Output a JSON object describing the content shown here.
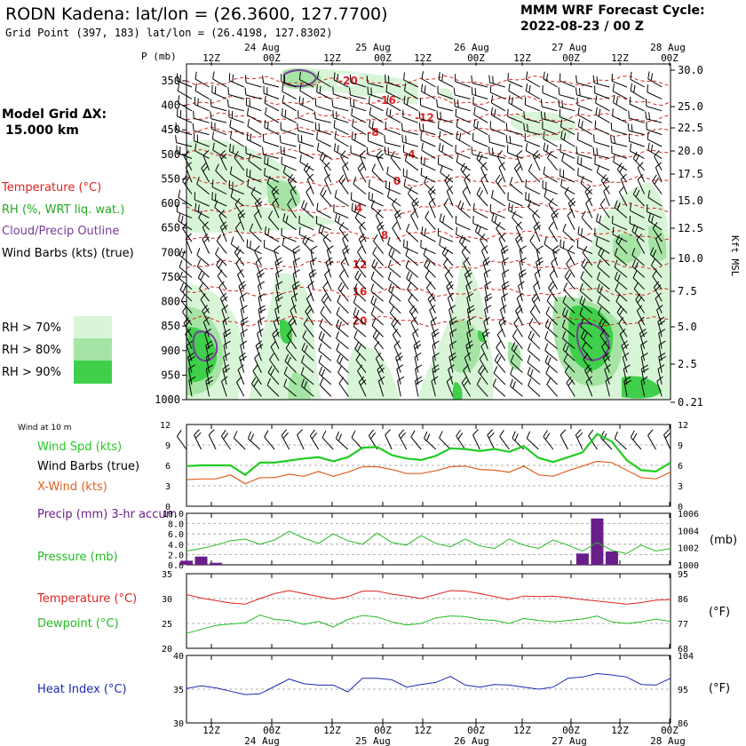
{
  "header": {
    "title": "RODN Kadena:  lat/lon = (26.3600, 127.7700)",
    "subtitle": "Grid Point (397, 183) lat/lon = (26.4198, 127.8302)",
    "cycle_line1": "MMM WRF Forecast Cycle:",
    "cycle_line2": "2022-08-23 / 00  Z"
  },
  "legend": {
    "model_grid_label": "Model Grid ΔX:",
    "model_grid_value": "15.000 km",
    "temperature": "Temperature (°C)",
    "rh": "RH (%, WRT liq. wat.)",
    "cloud": "Cloud/Precip Outline",
    "barbs": "Wind Barbs (kts) (true)",
    "rh70": "RH > 70%",
    "rh80": "RH > 80%",
    "rh90": "RH > 90%"
  },
  "colors": {
    "temperature": "#dd2222",
    "rh_text": "#22aa22",
    "cloud": "#7a3a9a",
    "rh70": "#d8f5d8",
    "rh80": "#a6e4a6",
    "rh90": "#3fcf4a",
    "wind_speed": "#22cc22",
    "cross_wind": "#e06020",
    "precip": "#6a1e8a",
    "pressure": "#22bb22",
    "dewpoint": "#22bb22",
    "heat_index": "#1c28b0"
  },
  "time_axis": {
    "top_days": [
      "24 Aug",
      "25 Aug",
      "26 Aug",
      "27 Aug",
      "28 Aug"
    ],
    "top_hours": [
      "12Z",
      "00Z",
      "12Z",
      "00Z",
      "12Z",
      "00Z",
      "12Z",
      "00Z",
      "12Z",
      "00Z"
    ],
    "bottom_days": [
      "24 Aug",
      "25 Aug",
      "26 Aug",
      "27 Aug",
      "28 Aug"
    ],
    "bottom_hours": [
      "12Z",
      "00Z",
      "12Z",
      "00Z",
      "12Z",
      "00Z",
      "12Z",
      "00Z",
      "12Z",
      "00Z"
    ]
  },
  "chart_data": [
    {
      "type": "heatmap",
      "ylabel": "P (mb)",
      "y2label": "Kft MSL",
      "pressure_levels": [
        "350",
        "400",
        "450",
        "500",
        "550",
        "600",
        "650",
        "700",
        "750",
        "800",
        "850",
        "900",
        "950",
        "1000"
      ],
      "height_ticks": [
        "30.0",
        "25.0",
        "22.5",
        "20.0",
        "17.5",
        "15.0",
        "12.5",
        "10.0",
        "7.5",
        "5.0",
        "2.5",
        "0.21"
      ],
      "temperature_contours": [
        {
          "label": "-20",
          "level": 350
        },
        {
          "label": "-16",
          "level": 390
        },
        {
          "label": "-12",
          "level": 425
        },
        {
          "label": "-8",
          "level": 455
        },
        {
          "label": "-4",
          "level": 500
        },
        {
          "label": "0",
          "level": 555
        },
        {
          "label": "4",
          "level": 610
        },
        {
          "label": "8",
          "level": 665
        },
        {
          "label": "12",
          "level": 725
        },
        {
          "label": "16",
          "level": 780
        },
        {
          "label": "20",
          "level": 840
        }
      ]
    },
    {
      "type": "line",
      "title": "Wind at 10 m",
      "series": [
        {
          "name": "Wind Spd (kts)",
          "values": [
            5.9,
            6.0,
            6.0,
            6.0,
            4.6,
            6.4,
            6.4,
            6.7,
            7.0,
            7.2,
            6.6,
            7.2,
            8.6,
            8.7,
            7.5,
            7.0,
            6.8,
            7.4,
            8.5,
            8.4,
            8.1,
            8.4,
            8.0,
            8.8,
            7.1,
            6.5,
            7.2,
            7.9,
            10.6,
            9.5,
            6.8,
            5.3,
            5.1,
            6.4
          ]
        },
        {
          "name": "X-Wind (kts)",
          "values": [
            3.9,
            4.0,
            4.0,
            4.6,
            3.3,
            4.2,
            4.2,
            4.7,
            4.4,
            5.1,
            4.4,
            5.0,
            5.8,
            5.8,
            5.4,
            4.8,
            4.8,
            5.2,
            5.8,
            5.9,
            5.4,
            5.3,
            5.0,
            5.9,
            4.6,
            4.4,
            5.2,
            5.9,
            6.6,
            6.4,
            5.3,
            4.2,
            4.0,
            5.0
          ]
        }
      ],
      "legend_extra": "Wind Barbs (true)",
      "y_ticks": [
        "0",
        "3",
        "6",
        "9",
        "12"
      ],
      "ylim": [
        0,
        12
      ]
    },
    {
      "type": "bar",
      "series": [
        {
          "name": "Precip (mm) 3-hr accum",
          "values": [
            0.8,
            1.6,
            0.4,
            0,
            0,
            0,
            0,
            0,
            0,
            0,
            0,
            0,
            0,
            0,
            0,
            0,
            0,
            0,
            0,
            0,
            0,
            0,
            0,
            0,
            0,
            0,
            0,
            2.2,
            9.0,
            2.6,
            0,
            0,
            0,
            0
          ]
        },
        {
          "name": "Pressure (mb)",
          "values": [
            1001.6,
            1001.9,
            1002.3,
            1002.8,
            1003.0,
            1002.4,
            1002.9,
            1003.9,
            1003.1,
            1002.5,
            1003.6,
            1002.8,
            1002.4,
            1003.7,
            1002.6,
            1002.3,
            1003.4,
            1002.5,
            1002.1,
            1003.0,
            1002.2,
            1001.9,
            1003.0,
            1002.3,
            1001.9,
            1002.9,
            1002.3,
            1001.6,
            1002.6,
            1001.7,
            1001.3,
            1002.3,
            1001.6,
            1001.9
          ]
        }
      ],
      "y_ticks_left": [
        "0.0",
        "2.0",
        "4.0",
        "6.0",
        "8.0",
        "10.0"
      ],
      "y_ticks_right": [
        "1000",
        "1002",
        "1004",
        "1006"
      ],
      "y2label": "(mb)"
    },
    {
      "type": "line",
      "series": [
        {
          "name": "Temperature (°C)",
          "values": [
            30.8,
            30.1,
            29.6,
            29.1,
            28.9,
            30.0,
            31.0,
            31.6,
            31.0,
            30.4,
            29.9,
            30.4,
            31.5,
            31.5,
            30.9,
            30.5,
            30.0,
            30.8,
            31.6,
            31.5,
            31.0,
            30.4,
            29.8,
            30.5,
            30.4,
            30.5,
            30.2,
            29.8,
            29.5,
            29.2,
            28.9,
            29.2,
            29.7,
            29.8
          ]
        },
        {
          "name": "Dewpoint (°C)",
          "values": [
            23.0,
            23.8,
            24.6,
            24.9,
            25.1,
            26.7,
            25.8,
            25.6,
            24.8,
            25.4,
            24.3,
            25.8,
            26.6,
            26.3,
            25.3,
            24.7,
            25.0,
            26.1,
            26.5,
            26.4,
            25.8,
            25.6,
            25.0,
            26.0,
            25.6,
            25.3,
            25.6,
            25.9,
            26.5,
            25.3,
            25.0,
            25.3,
            25.9,
            25.4
          ]
        }
      ],
      "y_ticks_left": [
        "20",
        "25",
        "30",
        "35"
      ],
      "y_ticks_right": [
        "68",
        "77",
        "86",
        "95"
      ],
      "y2label": "(°F)",
      "ylim": [
        20,
        35
      ]
    },
    {
      "type": "line",
      "series": [
        {
          "name": "Heat Index (°C)",
          "values": [
            35.1,
            35.5,
            35.2,
            34.7,
            34.2,
            34.3,
            35.4,
            36.5,
            35.8,
            35.6,
            35.6,
            34.6,
            36.6,
            36.6,
            36.4,
            35.3,
            35.7,
            36.0,
            36.9,
            35.6,
            35.3,
            35.7,
            35.6,
            35.3,
            35.0,
            35.3,
            36.6,
            36.8,
            37.3,
            37.1,
            36.8,
            35.7,
            35.6,
            36.6
          ]
        }
      ],
      "y_ticks_left": [
        "30",
        "35",
        "40"
      ],
      "y_ticks_right": [
        "86",
        "95",
        "104"
      ],
      "y2label": "(°F)",
      "ylim": [
        30,
        40
      ]
    }
  ]
}
